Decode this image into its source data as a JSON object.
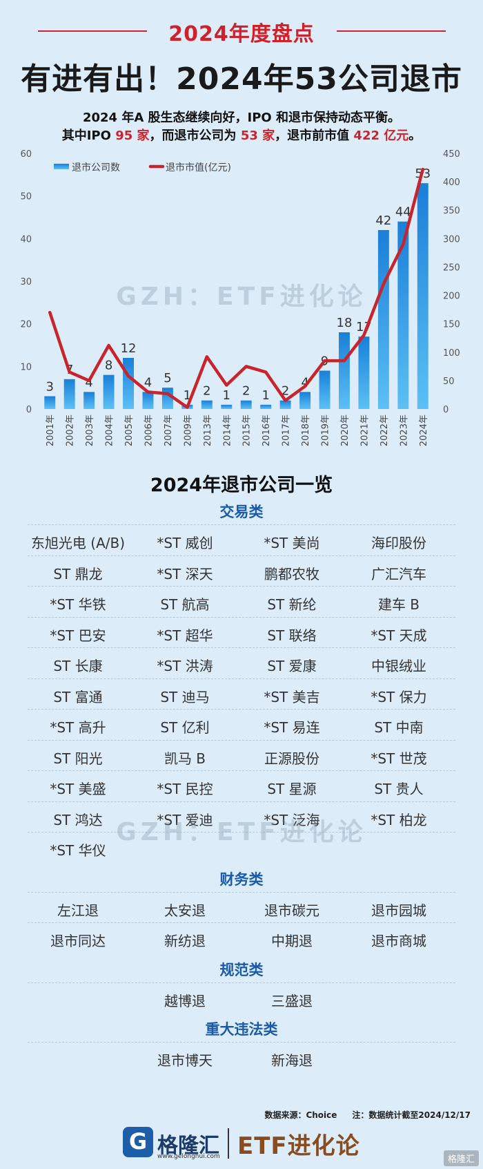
{
  "header": {
    "tag": "2024年度盘点",
    "headline": "有进有出！2024年53公司退市",
    "sub1": "2024 年A 股生态继续向好，IPO 和退市保持动态平衡。",
    "sub2_a": "其中IPO ",
    "sub2_ipo": "95 家",
    "sub2_b": "，而退市公司为 ",
    "sub2_delist": "53 家",
    "sub2_c": "，退市前市值 ",
    "sub2_value": "422 亿元",
    "sub2_d": "。"
  },
  "watermark": "GZH：ETF进化论",
  "chart_data": {
    "type": "bar",
    "categories": [
      "2001年",
      "2002年",
      "2003年",
      "2004年",
      "2005年",
      "2006年",
      "2007年",
      "2009年",
      "2013年",
      "2014年",
      "2015年",
      "2016年",
      "2017年",
      "2018年",
      "2019年",
      "2020年",
      "2021年",
      "2022年",
      "2023年",
      "2024年"
    ],
    "series": [
      {
        "name": "退市公司数",
        "type": "bar",
        "axis": "left",
        "values": [
          3,
          7,
          4,
          8,
          12,
          4,
          5,
          1,
          2,
          1,
          2,
          1,
          2,
          4,
          9,
          18,
          17,
          42,
          44,
          53
        ]
      },
      {
        "name": "退市市值(亿元)",
        "type": "line",
        "axis": "right",
        "values": [
          170,
          65,
          50,
          112,
          58,
          30,
          27,
          3,
          92,
          42,
          75,
          65,
          15,
          40,
          85,
          85,
          130,
          220,
          290,
          422
        ]
      }
    ],
    "ylim_left": [
      0,
      60
    ],
    "ylim_right": [
      0,
      450
    ],
    "yticks_left": [
      0,
      10,
      20,
      30,
      40,
      50,
      60
    ],
    "yticks_right": [
      0,
      50,
      100,
      150,
      200,
      250,
      300,
      350,
      400,
      450
    ],
    "legend_position": "top-left",
    "colors": {
      "bar": "#1e8fe0",
      "line": "#c8242b"
    }
  },
  "list": {
    "title": "2024年退市公司一览",
    "categories": [
      {
        "name": "交易类",
        "rows": [
          [
            "东旭光电 (A/B)",
            "*ST 威创",
            "*ST 美尚",
            "海印股份"
          ],
          [
            "ST 鼎龙",
            "*ST 深天",
            "鹏都农牧",
            "广汇汽车"
          ],
          [
            "*ST 华铁",
            "ST 航高",
            "ST 新纶",
            "建车 B"
          ],
          [
            "*ST 巴安",
            "*ST 超华",
            "ST 联络",
            "*ST 天成"
          ],
          [
            "ST 长康",
            "*ST 洪涛",
            "ST 爱康",
            "中银绒业"
          ],
          [
            "ST 富通",
            "ST 迪马",
            "*ST 美吉",
            "*ST 保力"
          ],
          [
            "*ST 高升",
            "ST 亿利",
            "*ST 易连",
            "ST 中南"
          ],
          [
            "ST 阳光",
            "凯马 B",
            "正源股份",
            "*ST 世茂"
          ],
          [
            "*ST 美盛",
            "*ST 民控",
            "ST 星源",
            "ST 贵人"
          ],
          [
            "ST 鸿达",
            "*ST 爱迪",
            "*ST 泛海",
            "*ST 柏龙"
          ],
          [
            "*ST 华仪"
          ]
        ]
      },
      {
        "name": "财务类",
        "rows": [
          [
            "左江退",
            "太安退",
            "退市碳元",
            "退市园城"
          ],
          [
            "退市同达",
            "新纺退",
            "中期退",
            "退市商城"
          ]
        ]
      },
      {
        "name": "规范类",
        "rows": [
          [
            "",
            "越博退",
            "三盛退",
            ""
          ]
        ]
      },
      {
        "name": "重大违法类",
        "rows": [
          [
            "",
            "退市博天",
            "新海退",
            ""
          ]
        ]
      }
    ]
  },
  "footnote": {
    "source": "数据来源：Choice",
    "note": "注：数据统计截至2024/12/17"
  },
  "brand": {
    "name": "格隆汇",
    "url": "www.gelonghui.com",
    "etf": "ETF进化论",
    "corner": "格隆汇"
  }
}
